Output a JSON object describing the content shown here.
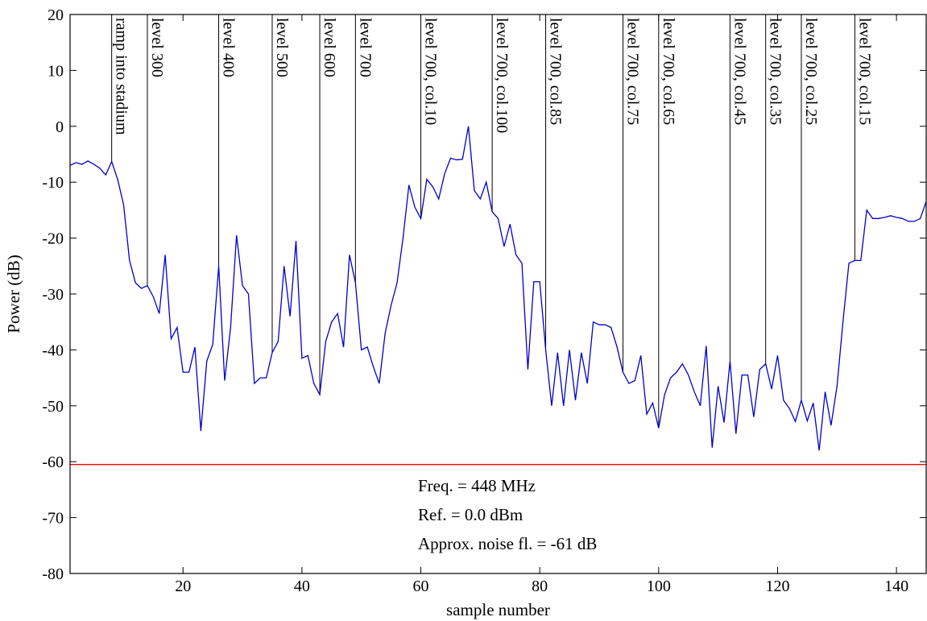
{
  "chart_data": {
    "type": "line",
    "title": "",
    "xlabel": "sample number",
    "ylabel": "Power (dB)",
    "xlim": [
      1,
      145
    ],
    "ylim": [
      -80,
      20
    ],
    "xticks": [
      20,
      40,
      60,
      80,
      100,
      120,
      140
    ],
    "yticks": [
      20,
      10,
      0,
      -10,
      -20,
      -30,
      -40,
      -50,
      -60,
      -70,
      -80
    ],
    "grid": false,
    "series": [
      {
        "color": "#0000cc",
        "x": [
          1,
          2,
          3,
          4,
          5,
          6,
          7,
          8,
          9,
          10,
          11,
          12,
          13,
          14,
          15,
          16,
          17,
          18,
          19,
          20,
          21,
          22,
          23,
          24,
          25,
          26,
          27,
          28,
          29,
          30,
          31,
          32,
          33,
          34,
          35,
          36,
          37,
          38,
          39,
          40,
          41,
          42,
          43,
          44,
          45,
          46,
          47,
          48,
          49,
          50,
          51,
          52,
          53,
          54,
          55,
          56,
          57,
          58,
          59,
          60,
          61,
          62,
          63,
          64,
          65,
          66,
          67,
          68,
          69,
          70,
          71,
          72,
          73,
          74,
          75,
          76,
          77,
          78,
          79,
          80,
          81,
          82,
          83,
          84,
          85,
          86,
          87,
          88,
          89,
          90,
          91,
          92,
          93,
          94,
          95,
          96,
          97,
          98,
          99,
          100,
          101,
          102,
          103,
          104,
          105,
          106,
          107,
          108,
          109,
          110,
          111,
          112,
          113,
          114,
          115,
          116,
          117,
          118,
          119,
          120,
          121,
          122,
          123,
          124,
          125,
          126,
          127,
          128,
          129,
          130,
          131,
          132,
          133,
          134,
          135,
          136,
          137,
          138,
          139,
          140,
          141,
          142,
          143,
          144,
          145
        ],
        "y": [
          -7,
          -6.5,
          -6.8,
          -6.2,
          -6.8,
          -7.5,
          -8.7,
          -6.3,
          -9.5,
          -14,
          -24,
          -28,
          -29,
          -28.5,
          -30.5,
          -33.5,
          -23,
          -38,
          -36,
          -44,
          -44,
          -39.5,
          -54.5,
          -42,
          -39,
          -25,
          -45.5,
          -36,
          -19.5,
          -28.5,
          -30,
          -46,
          -45,
          -45,
          -40.5,
          -38.5,
          -25,
          -34,
          -20.5,
          -41.5,
          -41,
          -46,
          -48,
          -38.5,
          -35,
          -33.5,
          -39.5,
          -23,
          -28,
          -40,
          -39.5,
          -43,
          -46,
          -37,
          -32,
          -28,
          -20,
          -10.5,
          -14.5,
          -16.5,
          -9.5,
          -10.8,
          -13,
          -8.5,
          -5.7,
          -6,
          -5.9,
          0,
          -11.5,
          -13,
          -10,
          -15.3,
          -16.5,
          -21.5,
          -17.5,
          -23,
          -24.5,
          -43.5,
          -27.8,
          -27.8,
          -40,
          -50,
          -40.5,
          -50,
          -40,
          -49,
          -40.5,
          -46,
          -35,
          -35.5,
          -35.5,
          -36,
          -39.5,
          -44,
          -46,
          -45.5,
          -41,
          -51.5,
          -49.5,
          -54,
          -48,
          -45,
          -44,
          -42.5,
          -44.5,
          -47.5,
          -50,
          -39.3,
          -57.5,
          -46.5,
          -53,
          -42,
          -55,
          -44.5,
          -44.5,
          -52,
          -43.5,
          -42.5,
          -47,
          -41,
          -49,
          -50.5,
          -52.8,
          -49,
          -52.7,
          -49.5,
          -58,
          -47.5,
          -53.5,
          -46.5,
          -35,
          -24.5,
          -24,
          -24,
          -15,
          -16.5,
          -16.5,
          -16.3,
          -16,
          -16.3,
          -16.5,
          -17,
          -17,
          -16.5,
          -13.5
        ]
      }
    ],
    "noise_floor": {
      "value": -60.5,
      "color": "#ff0000"
    },
    "markers": [
      {
        "x": 8,
        "label": "ramp into stadium"
      },
      {
        "x": 14,
        "label": "level 300"
      },
      {
        "x": 26,
        "label": "level 400"
      },
      {
        "x": 35,
        "label": "level 500"
      },
      {
        "x": 43,
        "label": "level 600"
      },
      {
        "x": 49,
        "label": "level 700"
      },
      {
        "x": 60,
        "label": "level 700, col.10"
      },
      {
        "x": 72,
        "label": "level 700, col.100"
      },
      {
        "x": 81,
        "label": "level 700, col.85"
      },
      {
        "x": 94,
        "label": "level 700, col.75"
      },
      {
        "x": 100,
        "label": "level 700, col.65"
      },
      {
        "x": 112,
        "label": "level 700, col.45"
      },
      {
        "x": 118,
        "label": "level 700, col.35"
      },
      {
        "x": 124,
        "label": "level 700, col.25"
      },
      {
        "x": 133,
        "label": "level 700, col.15"
      }
    ],
    "annotations": [
      "Freq. = 448 MHz",
      "Ref. = 0.0 dBm",
      "Approx. noise fl. = -61 dB"
    ]
  }
}
